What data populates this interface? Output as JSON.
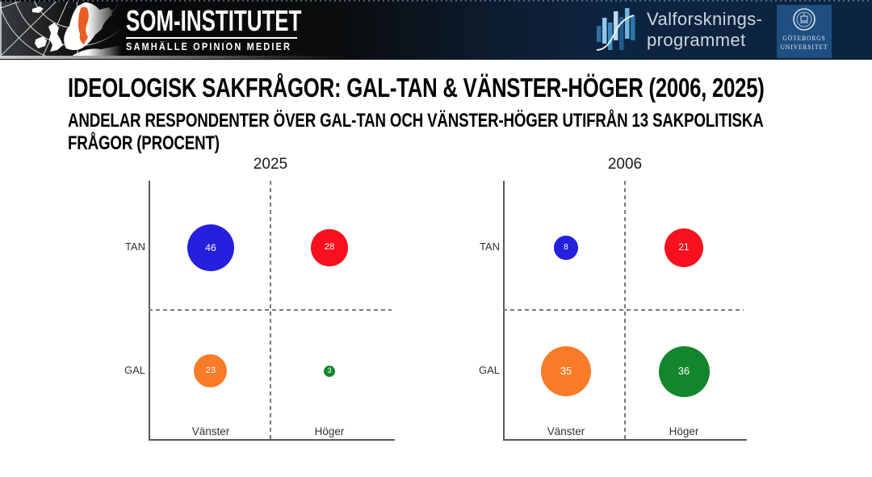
{
  "header": {
    "som": {
      "title": "SOM-INSTITUTET",
      "tagline": "SAMHÄLLE OPINION MEDIER"
    },
    "valforskning": {
      "line1": "Valforsknings-",
      "line2": "programmet"
    },
    "university": {
      "line1": "GÖTEBORGS",
      "line2": "UNIVERSITET"
    }
  },
  "slide": {
    "title": "IDEOLOGISK SAKFRÅGOR: GAL-TAN & VÄNSTER-HÖGER (2006, 2025)",
    "subtitle_line1": "ANDELAR RESPONDENTER ÖVER GAL-TAN OCH VÄNSTER-HÖGER UTIFRÅN 13 SAKPOLITISKA",
    "subtitle_line2": "FRÅGOR (PROCENT)"
  },
  "chart_data": [
    {
      "type": "bubble",
      "title": "2025",
      "x_categories": [
        "Vänster",
        "Höger"
      ],
      "y_categories": [
        "TAN",
        "GAL"
      ],
      "points": [
        {
          "x": "Vänster",
          "y": "TAN",
          "value": 46,
          "color": "#2520dd"
        },
        {
          "x": "Höger",
          "y": "TAN",
          "value": 28,
          "color": "#f8101e"
        },
        {
          "x": "Vänster",
          "y": "GAL",
          "value": 23,
          "color": "#f87c28"
        },
        {
          "x": "Höger",
          "y": "GAL",
          "value": 3,
          "color": "#13862c"
        }
      ],
      "value_unit": "procent",
      "quadrant_lines": "dashed",
      "bubble_label_color": "#ffffff"
    },
    {
      "type": "bubble",
      "title": "2006",
      "x_categories": [
        "Vänster",
        "Höger"
      ],
      "y_categories": [
        "TAN",
        "GAL"
      ],
      "points": [
        {
          "x": "Vänster",
          "y": "TAN",
          "value": 8,
          "color": "#2520dd"
        },
        {
          "x": "Höger",
          "y": "TAN",
          "value": 21,
          "color": "#f8101e"
        },
        {
          "x": "Vänster",
          "y": "GAL",
          "value": 35,
          "color": "#f87c28"
        },
        {
          "x": "Höger",
          "y": "GAL",
          "value": 36,
          "color": "#13862c"
        }
      ],
      "value_unit": "procent",
      "quadrant_lines": "dashed",
      "bubble_label_color": "#ffffff"
    }
  ]
}
